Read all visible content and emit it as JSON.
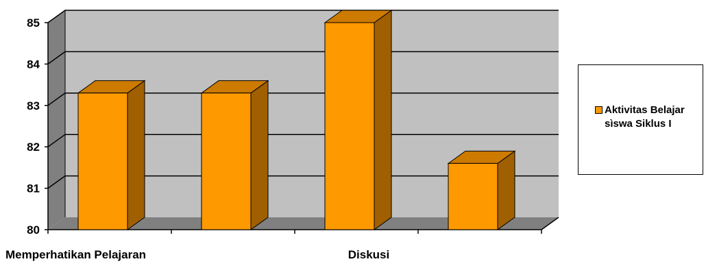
{
  "colors": {
    "bar_front": "#ff9900",
    "bar_side": "#a05f00",
    "bar_top": "#cc7a00",
    "plot_back": "#c0c0c0",
    "plot_side": "#808080",
    "plot_floor": "#808080",
    "gridline": "#000000"
  },
  "chart_data": {
    "type": "bar",
    "categories": [
      "Memperhatikan Pelajaran",
      "",
      "Diskusi",
      ""
    ],
    "series": [
      {
        "name": "Aktivitas Belajar sìswa Siklus I",
        "values": [
          83.3,
          83.3,
          85,
          81.6
        ]
      }
    ],
    "ylim": [
      80,
      85
    ],
    "yticks": [
      "80",
      "81",
      "82",
      "83",
      "84",
      "85"
    ],
    "grid": true,
    "legend": "right",
    "style": "3d"
  },
  "legend": {
    "label": "Aktivitas Belajar sìswa Siklus I"
  }
}
